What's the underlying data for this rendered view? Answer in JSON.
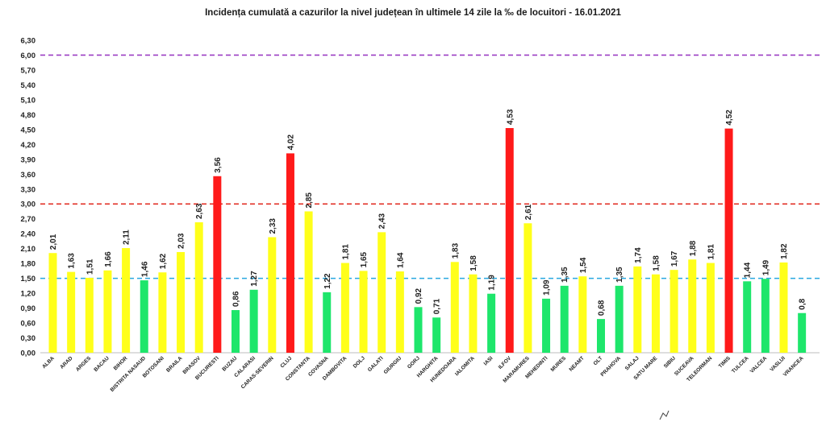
{
  "chart_data": {
    "type": "bar",
    "title": "Incidența cumulată a cazurilor la nivel județean în ultimele 14 zile  la ‰ de locuitori  - 16.01.2021",
    "xlabel": "",
    "ylabel": "",
    "ylim": [
      0,
      6.3
    ],
    "y_ticks": [
      "0,00",
      "0,30",
      "0,60",
      "0,90",
      "1,20",
      "1,50",
      "1,80",
      "2,10",
      "2,40",
      "2,70",
      "3,00",
      "3,30",
      "3,60",
      "3,90",
      "4,20",
      "4,50",
      "4,80",
      "5,10",
      "5,40",
      "5,70",
      "6,00",
      "6,30"
    ],
    "grid": false,
    "legend": "none",
    "categories": [
      "ALBA",
      "ARAD",
      "ARGES",
      "BACAU",
      "BIHOR",
      "BISTRITA NASAUD",
      "BOTOSANI",
      "BRAILA",
      "BRASOV",
      "BUCURESTI",
      "BUZAU",
      "CALARASI",
      "CARAS-SEVERIN",
      "CLUJ",
      "CONSTANTA",
      "COVASNA",
      "DAMBOVITA",
      "DOLJ",
      "GALATI",
      "GIURGIU",
      "GORJ",
      "HARGHITA",
      "HUNEDOARA",
      "IALOMITA",
      "IASI",
      "ILFOV",
      "MARAMURES",
      "MEHEDINTI",
      "MURES",
      "NEAMT",
      "OLT",
      "PRAHOVA",
      "SALAJ",
      "SATU MARE",
      "SIBIU",
      "SUCEAVA",
      "TELEORMAN",
      "TIMIS",
      "TULCEA",
      "VALCEA",
      "VASLUI",
      "VRANCEA"
    ],
    "values": [
      2.01,
      1.63,
      1.51,
      1.66,
      2.11,
      1.46,
      1.62,
      2.03,
      2.63,
      3.56,
      0.86,
      1.27,
      2.33,
      4.02,
      2.85,
      1.22,
      1.81,
      1.65,
      2.43,
      1.64,
      0.92,
      0.71,
      1.83,
      1.58,
      1.19,
      4.53,
      2.61,
      1.09,
      1.35,
      1.54,
      0.68,
      1.35,
      1.74,
      1.58,
      1.67,
      1.88,
      1.81,
      4.52,
      1.44,
      1.49,
      1.82,
      0.8
    ],
    "value_labels": [
      "2,01",
      "1,63",
      "1,51",
      "1,66",
      "2,11",
      "1,46",
      "1,62",
      "2,03",
      "2,63",
      "3,56",
      "0,86",
      "1,27",
      "2,33",
      "4,02",
      "2,85",
      "1,22",
      "1,81",
      "1,65",
      "2,43",
      "1,64",
      "0,92",
      "0,71",
      "1,83",
      "1,58",
      "1,19",
      "4,53",
      "2,61",
      "1,09",
      "1,35",
      "1,54",
      "0,68",
      "1,35",
      "1,74",
      "1,58",
      "1,67",
      "1,88",
      "1,81",
      "4,52",
      "1,44",
      "1,49",
      "1,82",
      "0,8"
    ],
    "reference_lines": [
      {
        "value": 6.0,
        "color": "#9b3fc4"
      },
      {
        "value": 3.0,
        "color": "#e0281e"
      },
      {
        "value": 1.5,
        "color": "#29a8e0"
      }
    ],
    "colors": {
      "green": "#1ee66b",
      "yellow": "#ffff1a",
      "red": "#ff1a1a"
    },
    "color_thresholds": {
      "green_max": 1.5,
      "yellow_max": 3.0
    }
  }
}
